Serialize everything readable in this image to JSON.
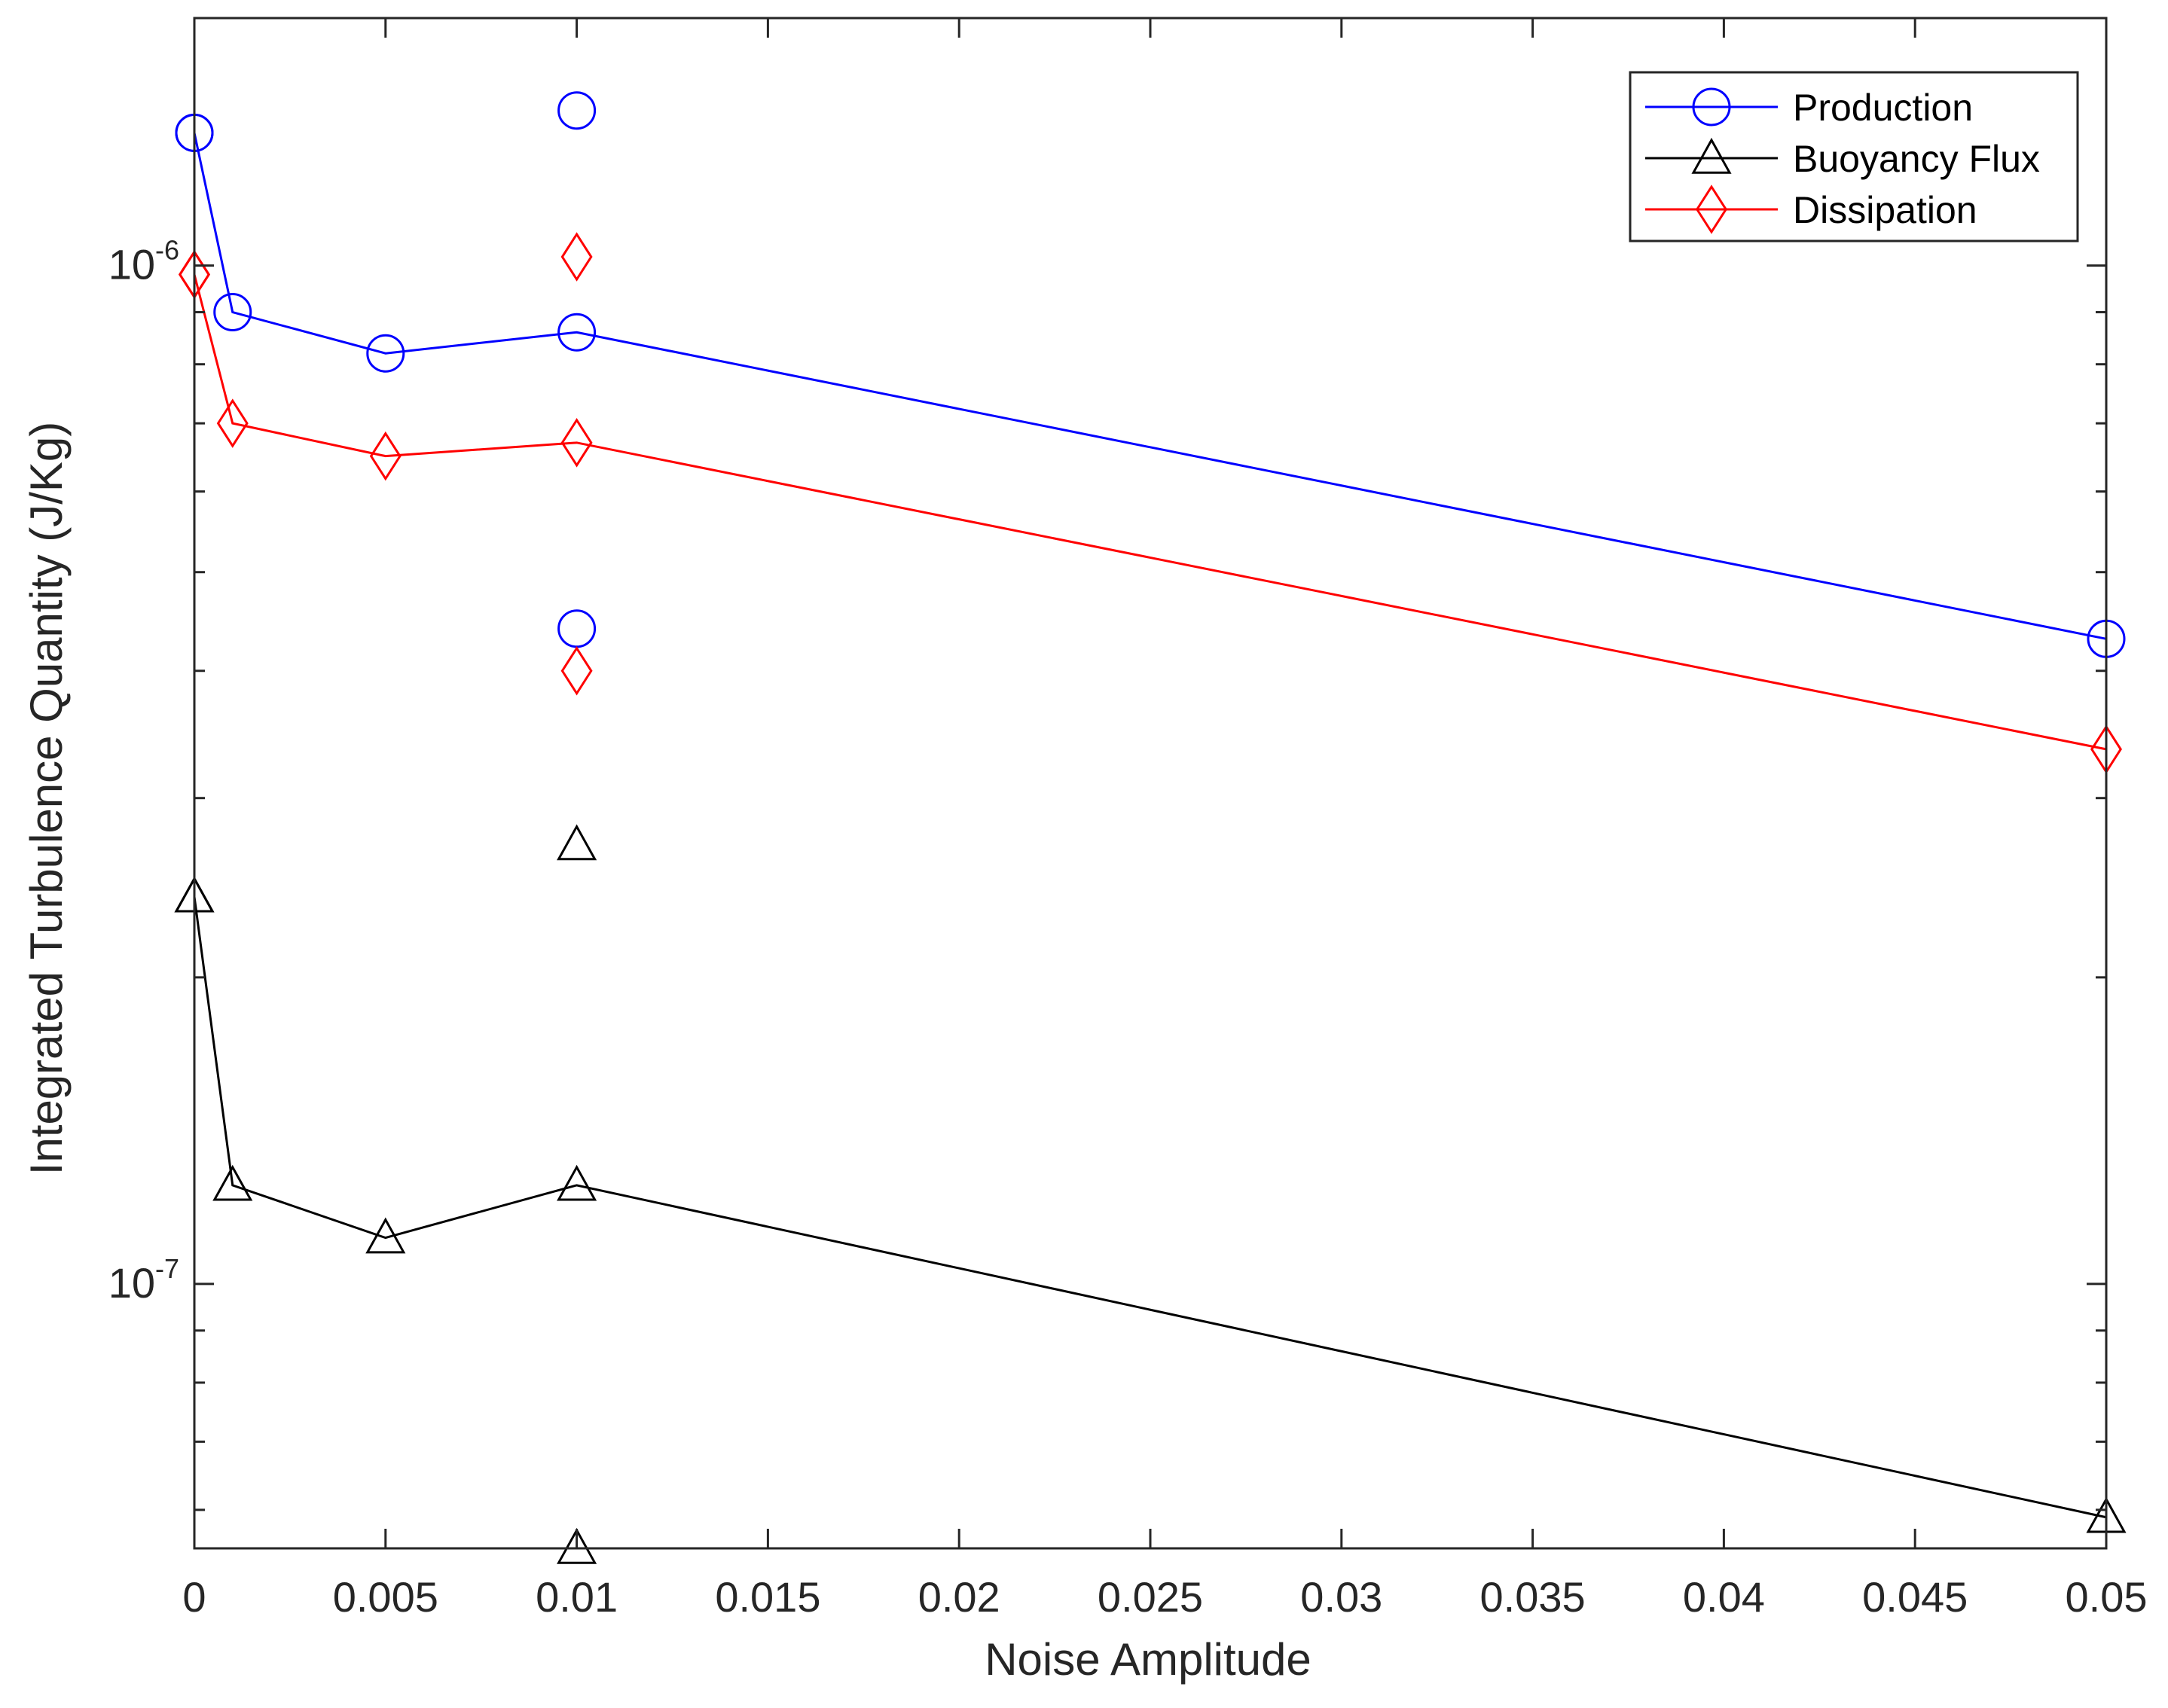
{
  "chart_data": {
    "type": "line",
    "title": "",
    "xlabel": "Noise Amplitude",
    "ylabel": "Integrated Turbulence Quantity (J/Kg)",
    "xlim": [
      0,
      0.05
    ],
    "ylim": [
      5.5e-08,
      1.75e-06
    ],
    "yscale": "log",
    "grid": false,
    "legend_position": "top-right",
    "xticks": [
      0,
      0.005,
      0.01,
      0.015,
      0.02,
      0.025,
      0.03,
      0.035,
      0.04,
      0.045,
      0.05
    ],
    "xtick_labels": [
      "0",
      "0.005",
      "0.01",
      "0.015",
      "0.02",
      "0.025",
      "0.03",
      "0.035",
      "0.04",
      "0.045",
      "0.05"
    ],
    "yticks_major": [
      {
        "base": "10",
        "exp": "-7",
        "value": 1e-07
      },
      {
        "base": "10",
        "exp": "-6",
        "value": 1e-06
      }
    ],
    "series": [
      {
        "name": "Production",
        "color": "#0000ff",
        "marker": "circle",
        "line": {
          "x": [
            0,
            0.001,
            0.005,
            0.01,
            0.05
          ],
          "y": [
            1.35e-06,
            9e-07,
            8.2e-07,
            8.6e-07,
            4.3e-07
          ]
        },
        "extra_points": {
          "x": [
            0,
            0.01,
            0.01
          ],
          "y": [
            1.35e-06,
            1.42e-06,
            4.4e-07
          ]
        }
      },
      {
        "name": "Buoyancy Flux",
        "color": "#000000",
        "marker": "triangle",
        "line": {
          "x": [
            0,
            0.001,
            0.005,
            0.01,
            0.05
          ],
          "y": [
            2.4e-07,
            1.25e-07,
            1.11e-07,
            1.25e-07,
            5.9e-08
          ]
        },
        "extra_points": {
          "x": [
            0,
            0.01,
            0.01
          ],
          "y": [
            2.4e-07,
            2.7e-07,
            5.5e-08
          ]
        }
      },
      {
        "name": "Dissipation",
        "color": "#ff0000",
        "marker": "diamond",
        "line": {
          "x": [
            0,
            0.001,
            0.005,
            0.01,
            0.05
          ],
          "y": [
            9.8e-07,
            7e-07,
            6.5e-07,
            6.7e-07,
            3.35e-07
          ]
        },
        "extra_points": {
          "x": [
            0,
            0.01,
            0.01
          ],
          "y": [
            9.8e-07,
            1.02e-06,
            4e-07
          ]
        }
      }
    ]
  }
}
